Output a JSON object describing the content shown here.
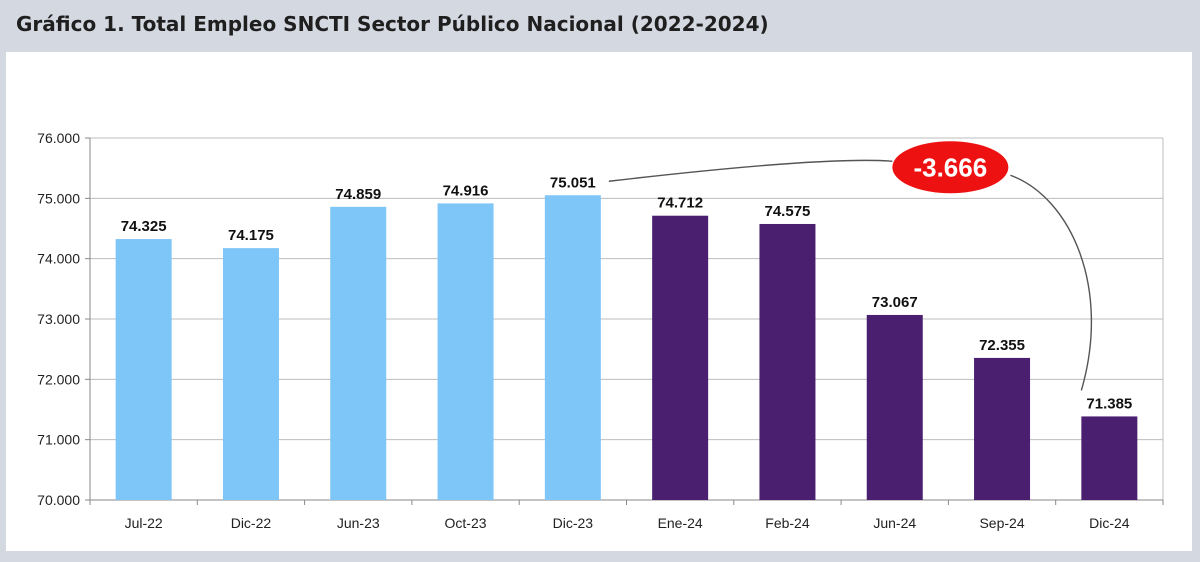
{
  "header": {
    "title": "Gráfico 1. Total Empleo SNCTI Sector Público Nacional (2022-2024)"
  },
  "colors": {
    "period_2022_2023": "#7fc6f8",
    "period_2024": "#4b1f6f",
    "badge": "#ee1111",
    "gridline": "#bdbdbd",
    "background": "#d4d8e1"
  },
  "chart_data": {
    "type": "bar",
    "title": "",
    "xlabel": "",
    "ylabel": "",
    "ylim": [
      70000,
      76000
    ],
    "grid": true,
    "yticks": [
      "70.000",
      "71.000",
      "72.000",
      "73.000",
      "74.000",
      "75.000",
      "76.000"
    ],
    "categories": [
      "Jul-22",
      "Dic-22",
      "Jun-23",
      "Oct-23",
      "Dic-23",
      "Ene-24",
      "Feb-24",
      "Jun-24",
      "Sep-24",
      "Dic-24"
    ],
    "values": [
      74325,
      74175,
      74859,
      74916,
      75051,
      74712,
      74575,
      73067,
      72355,
      71385
    ],
    "data_labels": [
      "74.325",
      "74.175",
      "74.859",
      "74.916",
      "75.051",
      "74.712",
      "74.575",
      "73.067",
      "72.355",
      "71.385"
    ],
    "bar_color_group": [
      0,
      0,
      0,
      0,
      0,
      1,
      1,
      1,
      1,
      1
    ],
    "annotation": {
      "text": "-3.666",
      "from_category": "Dic-23",
      "to_category": "Dic-24"
    }
  }
}
